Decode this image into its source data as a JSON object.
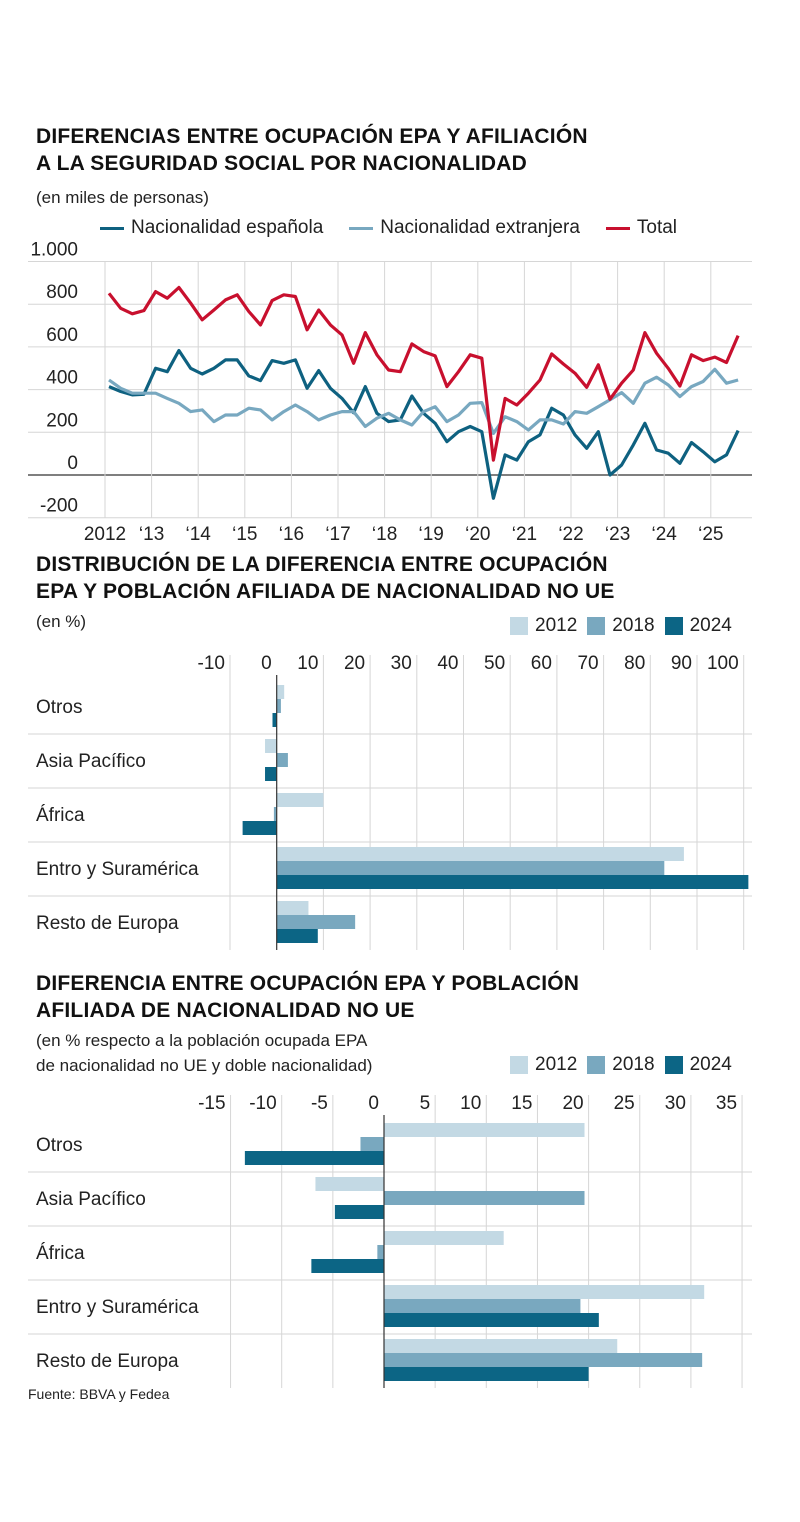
{
  "colors": {
    "espanola": "#0e6180",
    "extranjera": "#78a8c0",
    "total": "#c8102e",
    "y2012": "#c3d9e4",
    "y2018": "#79a8bf",
    "y2024": "#0c6585",
    "grid": "#d6d6d6",
    "zero": "#333333"
  },
  "source": "Fuente: BBVA y Fedea",
  "chart_data": [
    {
      "type": "line",
      "title": "DIFERENCIAS ENTRE OCUPACIÓN EPA Y AFILIACIÓN A LA SEGURIDAD SOCIAL POR NACIONALIDAD",
      "title_lines": [
        "DIFERENCIAS ENTRE OCUPACIÓN EPA Y AFILIACIÓN",
        "A LA SEGURIDAD SOCIAL POR NACIONALIDAD"
      ],
      "subtitle": "(en miles de personas)",
      "ylim": [
        -200,
        1000
      ],
      "yticks": [
        1000,
        800,
        600,
        400,
        200,
        0,
        -200
      ],
      "ytick_labels": [
        "1.000",
        "800",
        "600",
        "400",
        "200",
        "0",
        "-200"
      ],
      "xticks": [
        "2012",
        "‘13",
        "‘14",
        "‘15",
        "‘16",
        "‘17",
        "‘18",
        "‘19",
        "‘20",
        "‘21",
        "‘22",
        "‘23",
        "‘24",
        "‘25"
      ],
      "x_start": "2012 T1",
      "frequency": "quarterly",
      "grid": true,
      "legend": "top",
      "series": [
        {
          "name": "Nacionalidad española",
          "color_key": "espanola",
          "values": [
            414,
            391,
            375,
            378,
            500,
            484,
            583,
            500,
            473,
            500,
            539,
            539,
            464,
            442,
            536,
            523,
            539,
            406,
            489,
            406,
            359,
            292,
            414,
            289,
            250,
            258,
            370,
            289,
            242,
            156,
            203,
            227,
            203,
            -109,
            94,
            70,
            156,
            188,
            313,
            281,
            188,
            125,
            203,
            0,
            47,
            141,
            242,
            117,
            102,
            55,
            152,
            109,
            62,
            94,
            208
          ]
        },
        {
          "name": "Nacionalidad extranjera",
          "color_key": "extranjera",
          "values": [
            445,
            406,
            383,
            383,
            383,
            359,
            336,
            297,
            305,
            250,
            281,
            281,
            313,
            305,
            258,
            297,
            328,
            297,
            258,
            281,
            297,
            297,
            227,
            266,
            289,
            258,
            234,
            297,
            320,
            250,
            281,
            336,
            339,
            195,
            273,
            250,
            211,
            258,
            258,
            239,
            297,
            289,
            320,
            352,
            386,
            336,
            430,
            458,
            422,
            367,
            414,
            438,
            495,
            430,
            445
          ]
        },
        {
          "name": "Total",
          "color_key": "total",
          "values": [
            851,
            781,
            755,
            770,
            859,
            828,
            878,
            805,
            727,
            773,
            820,
            844,
            766,
            703,
            817,
            844,
            836,
            680,
            773,
            703,
            656,
            523,
            667,
            563,
            492,
            484,
            614,
            578,
            558,
            414,
            484,
            563,
            547,
            70,
            359,
            328,
            383,
            445,
            567,
            520,
            477,
            411,
            516,
            355,
            430,
            492,
            667,
            570,
            500,
            417,
            563,
            536,
            552,
            527,
            653
          ]
        }
      ]
    },
    {
      "type": "bar",
      "orientation": "horizontal",
      "title": "DISTRIBUCIÓN DE LA DIFERENCIA ENTRE OCUPACIÓN EPA Y POBLACIÓN AFILIADA DE NACIONALIDAD NO UE",
      "title_lines": [
        "DISTRIBUCIÓN DE LA DIFERENCIA ENTRE OCUPACIÓN",
        "EPA Y POBLACIÓN AFILIADA DE NACIONALIDAD NO UE"
      ],
      "subtitle_lines": [
        "(en %)"
      ],
      "xlim": [
        -10,
        100
      ],
      "xticks": [
        -10,
        0,
        10,
        20,
        30,
        40,
        50,
        60,
        70,
        80,
        90,
        100
      ],
      "grid": true,
      "legend": "top-right",
      "categories": [
        "Otros",
        "Asia Pacífico",
        "África",
        "Entro y Suramérica",
        "Resto de Europa"
      ],
      "series": [
        {
          "name": "2012",
          "color_key": "y2012",
          "values": [
            1.6,
            -2.5,
            10,
            87.2,
            6.8
          ]
        },
        {
          "name": "2018",
          "color_key": "y2018",
          "values": [
            0.9,
            2.4,
            -0.6,
            83,
            16.8
          ]
        },
        {
          "name": "2024",
          "color_key": "y2024",
          "values": [
            -0.9,
            -2.5,
            -7.3,
            101,
            8.8
          ]
        }
      ]
    },
    {
      "type": "bar",
      "orientation": "horizontal",
      "title": "DIFERENCIA ENTRE OCUPACIÓN EPA Y POBLACIÓN AFILIADA DE NACIONALIDAD NO UE",
      "title_lines": [
        "DIFERENCIA ENTRE OCUPACIÓN EPA Y POBLACIÓN",
        "AFILIADA DE NACIONALIDAD NO UE"
      ],
      "subtitle_lines": [
        "(en % respecto a la población ocupada EPA",
        "de nacionalidad no UE y doble nacionalidad)"
      ],
      "xlim": [
        -15,
        35
      ],
      "xticks": [
        -15,
        -10,
        -5,
        0,
        5,
        10,
        15,
        20,
        25,
        30,
        35
      ],
      "grid": true,
      "legend": "top-right",
      "categories": [
        "Otros",
        "Asia Pacífico",
        "África",
        "Entro y Suramérica",
        "Resto de Europa"
      ],
      "series": [
        {
          "name": "2012",
          "color_key": "y2012",
          "values": [
            19.6,
            -6.7,
            11.7,
            31.3,
            22.8
          ]
        },
        {
          "name": "2018",
          "color_key": "y2018",
          "values": [
            -2.3,
            19.6,
            -0.65,
            19.2,
            31.1
          ]
        },
        {
          "name": "2024",
          "color_key": "y2024",
          "values": [
            -13.6,
            -4.8,
            -7.1,
            21.0,
            20.0
          ]
        }
      ]
    }
  ]
}
